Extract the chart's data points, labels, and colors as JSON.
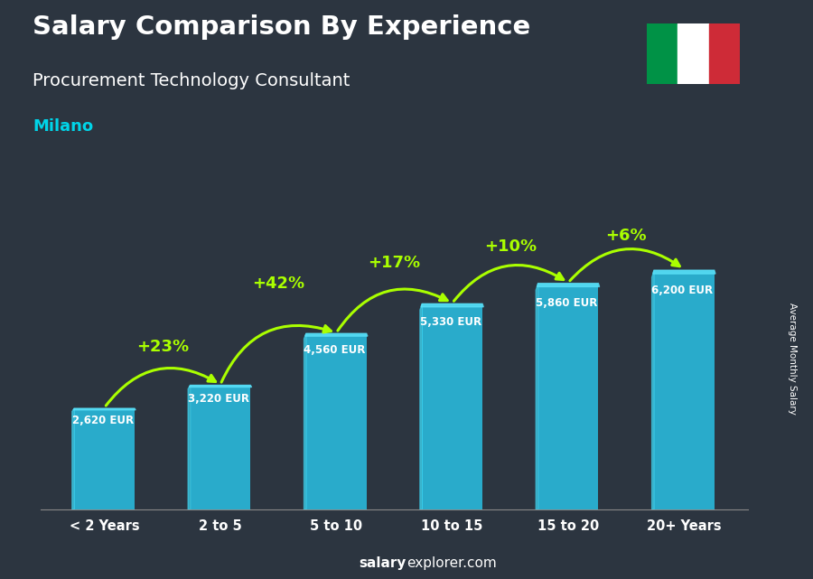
{
  "title": "Salary Comparison By Experience",
  "subtitle": "Procurement Technology Consultant",
  "city": "Milano",
  "ylabel": "Average Monthly Salary",
  "footer_bold": "salary",
  "footer_normal": "explorer.com",
  "categories": [
    "< 2 Years",
    "2 to 5",
    "5 to 10",
    "10 to 15",
    "15 to 20",
    "20+ Years"
  ],
  "values": [
    2620,
    3220,
    4560,
    5330,
    5860,
    6200
  ],
  "value_labels": [
    "2,620 EUR",
    "3,220 EUR",
    "4,560 EUR",
    "5,330 EUR",
    "5,860 EUR",
    "6,200 EUR"
  ],
  "pct_labels": [
    "+23%",
    "+42%",
    "+17%",
    "+10%",
    "+6%"
  ],
  "bar_color_main": "#29b6d8",
  "bar_color_left": "#3dd4f0",
  "bar_color_right": "#1a8aaa",
  "pct_color": "#aaff00",
  "title_color": "#ffffff",
  "subtitle_color": "#ffffff",
  "city_color": "#00d4e8",
  "bg_color": "#2c3540",
  "overlay_alpha": 0.55,
  "ylim_max": 7800,
  "bar_width": 0.52,
  "value_label_color": "#ffffff",
  "xlabel_color": "#ffffff",
  "flag_green": "#009246",
  "flag_red": "#ce2b37"
}
